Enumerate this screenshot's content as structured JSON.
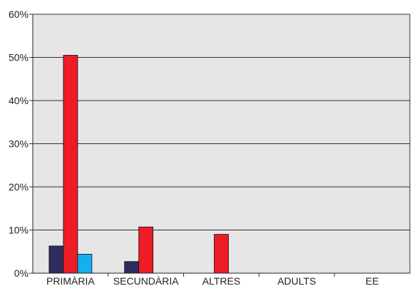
{
  "chart_data": {
    "type": "bar",
    "title": "",
    "xlabel": "",
    "ylabel": "",
    "categories": [
      "PRIMÀRIA",
      "SECUNDÀRIA",
      "ALTRES",
      "ADULTS",
      "EE"
    ],
    "series": [
      {
        "color": "#2e2b5f",
        "values": [
          6.3,
          2.7,
          0,
          0,
          0
        ]
      },
      {
        "color": "#ee1c25",
        "values": [
          50.5,
          10.7,
          9.0,
          0,
          0
        ]
      },
      {
        "color": "#13b0ee",
        "values": [
          4.4,
          0,
          0,
          0,
          0
        ]
      }
    ],
    "ylim": [
      0,
      60
    ],
    "yticks": [
      0,
      10,
      20,
      30,
      40,
      50,
      60
    ],
    "ytick_labels": [
      "0%",
      "10%",
      "20%",
      "30%",
      "40%",
      "50%",
      "60%"
    ],
    "grid": true,
    "legend": "none",
    "plot_background": "#e6e6e6"
  }
}
